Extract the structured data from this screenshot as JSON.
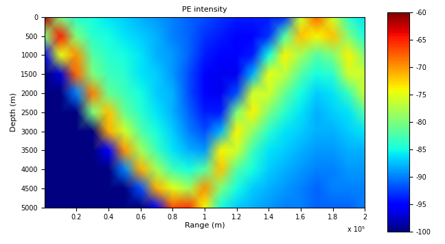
{
  "chart_data": {
    "type": "heatmap",
    "title": "PE intensity",
    "x_label": "Range (m)",
    "y_label": "Depth (m)",
    "annotation": "x 10⁵",
    "x": [
      0.0,
      0.1,
      0.2,
      0.3,
      0.4,
      0.5,
      0.6,
      0.7,
      0.8,
      0.9,
      1.0,
      1.1,
      1.2,
      1.3,
      1.4,
      1.5,
      1.6,
      1.7,
      1.8,
      1.9,
      2.0
    ],
    "y": [
      0,
      500,
      1000,
      1500,
      2000,
      2500,
      3000,
      3500,
      4000,
      4500,
      5000
    ],
    "cells": [
      [
        -62,
        -80,
        -84,
        -85,
        -86,
        -87,
        -88,
        -89,
        -90,
        -91,
        -92,
        -93,
        -94,
        -94,
        -94,
        -93,
        -76,
        -68,
        -76,
        -84,
        -86
      ],
      [
        -80,
        -65,
        -80,
        -84,
        -85,
        -86,
        -87,
        -88,
        -90,
        -91,
        -93,
        -94,
        -95,
        -95,
        -93,
        -82,
        -72,
        -74,
        -72,
        -80,
        -85
      ],
      [
        -95,
        -75,
        -70,
        -82,
        -84,
        -85,
        -86,
        -88,
        -89,
        -91,
        -94,
        -95,
        -95,
        -94,
        -85,
        -74,
        -78,
        -82,
        -80,
        -74,
        -80
      ],
      [
        -100,
        -97,
        -68,
        -80,
        -83,
        -84,
        -86,
        -87,
        -89,
        -92,
        -95,
        -96,
        -96,
        -88,
        -75,
        -77,
        -82,
        -85,
        -84,
        -76,
        -76
      ],
      [
        -100,
        -100,
        -90,
        -69,
        -81,
        -83,
        -85,
        -87,
        -88,
        -92,
        -95,
        -96,
        -92,
        -76,
        -76,
        -81,
        -85,
        -87,
        -86,
        -83,
        -76
      ],
      [
        -100,
        -100,
        -100,
        -80,
        -72,
        -81,
        -84,
        -86,
        -88,
        -91,
        -94,
        -94,
        -80,
        -74,
        -80,
        -84,
        -86,
        -88,
        -87,
        -86,
        -82
      ],
      [
        -100,
        -100,
        -100,
        -100,
        -71,
        -76,
        -82,
        -85,
        -87,
        -90,
        -92,
        -88,
        -74,
        -79,
        -84,
        -86,
        -87,
        -88,
        -88,
        -87,
        -86
      ],
      [
        -100,
        -100,
        -100,
        -100,
        -95,
        -70,
        -78,
        -83,
        -86,
        -88,
        -89,
        -74,
        -76,
        -83,
        -86,
        -87,
        -88,
        -89,
        -89,
        -88,
        -88
      ],
      [
        -100,
        -100,
        -100,
        -100,
        -100,
        -90,
        -71,
        -78,
        -83,
        -85,
        -82,
        -72,
        -82,
        -85,
        -87,
        -88,
        -89,
        -90,
        -90,
        -89,
        -89
      ],
      [
        -100,
        -100,
        -100,
        -100,
        -100,
        -100,
        -92,
        -71,
        -75,
        -78,
        -70,
        -80,
        -85,
        -87,
        -88,
        -89,
        -90,
        -91,
        -90,
        -90,
        -90
      ],
      [
        -100,
        -100,
        -100,
        -100,
        -100,
        -100,
        -100,
        -95,
        -67,
        -66,
        -74,
        -85,
        -87,
        -88,
        -89,
        -90,
        -90,
        -91,
        -91,
        -91,
        -90
      ]
    ],
    "xlim": [
      0,
      2
    ],
    "xticks": [
      0.2,
      0.4,
      0.6,
      0.8,
      1,
      1.2,
      1.4,
      1.6,
      1.8,
      2
    ],
    "ylim": [
      5000,
      0
    ],
    "yticks": [
      0,
      500,
      1000,
      1500,
      2000,
      2500,
      3000,
      3500,
      4000,
      4500,
      5000
    ],
    "colorbar_range": [
      -100,
      -60
    ],
    "colorbar_ticks": [
      -60,
      -65,
      -70,
      -75,
      -80,
      -85,
      -90,
      -95,
      -100
    ]
  }
}
